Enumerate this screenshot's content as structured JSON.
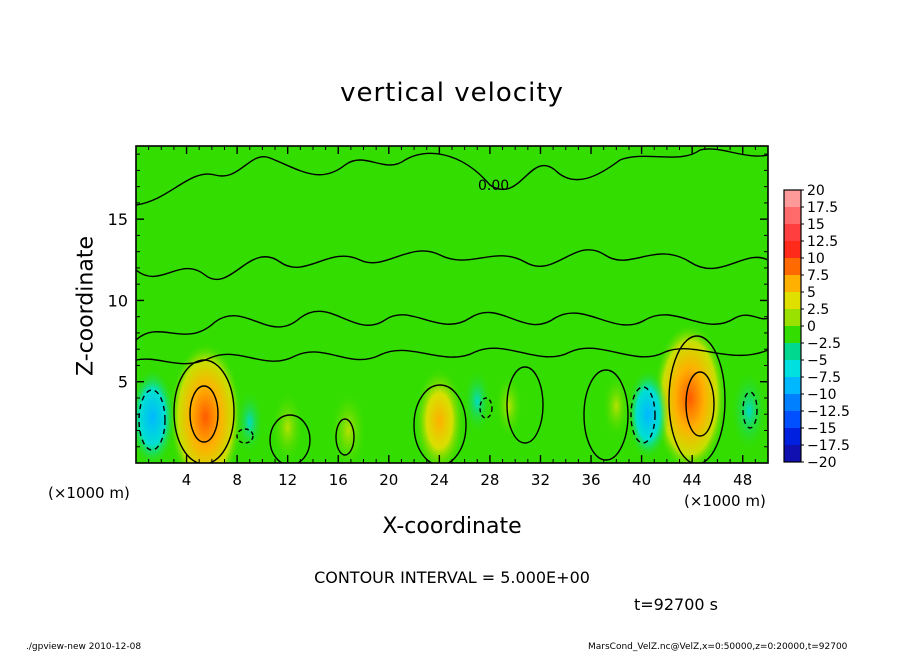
{
  "chart_data": {
    "type": "heatmap",
    "title": "vertical velocity",
    "xlabel": "X-coordinate",
    "ylabel": "Z-coordinate",
    "x_unit_label": "(×1000 m)",
    "xlim": [
      0,
      50
    ],
    "ylim": [
      0,
      19.5
    ],
    "x_ticks": [
      4,
      8,
      12,
      16,
      20,
      24,
      28,
      32,
      36,
      40,
      44,
      48
    ],
    "y_ticks": [
      5,
      10,
      15
    ],
    "contour_label": "0.00",
    "colorbar": {
      "levels": [
        20,
        17.5,
        15,
        12.5,
        10,
        7.5,
        5,
        2.5,
        0,
        -2.5,
        -5,
        -7.5,
        -10,
        -12.5,
        -15,
        -17.5,
        -20
      ],
      "colors": [
        "#ff9a9a",
        "#ff6a6a",
        "#ff3f3f",
        "#ff2a1a",
        "#ff6a00",
        "#ffb000",
        "#e0e000",
        "#9ae000",
        "#33dd00",
        "#00d890",
        "#00e0e0",
        "#00b8ff",
        "#0080ff",
        "#0050ff",
        "#0020e0",
        "#1010b0",
        "#7020b0"
      ]
    },
    "features": [
      {
        "x": 5.5,
        "z": 2.8,
        "w": 12
      },
      {
        "x": 43.8,
        "z": 4.0,
        "w": 12
      },
      {
        "x": 24,
        "z": 2.6,
        "w": 7
      },
      {
        "x": 16.8,
        "z": 2.0,
        "w": 4
      },
      {
        "x": 12,
        "z": 2.2,
        "w": 3
      },
      {
        "x": 38,
        "z": 3.5,
        "w": 2
      },
      {
        "x": 29.5,
        "z": 3.5,
        "w": 2
      },
      {
        "x": 1.3,
        "z": 2.8,
        "w": -6
      },
      {
        "x": 40.5,
        "z": 3.0,
        "w": -5
      },
      {
        "x": 48.5,
        "z": 3.2,
        "w": -4
      },
      {
        "x": 9,
        "z": 2.5,
        "w": -2
      },
      {
        "x": 27,
        "z": 3.8,
        "w": -2
      }
    ]
  },
  "contour_interval": "CONTOUR INTERVAL = 5.000E+00",
  "time_label": "t=92700 s",
  "footer": {
    "left": "./gpview-new   2010-12-08",
    "right": "MarsCond_VelZ.nc@VelZ,x=0:50000,z=0:20000,t=92700"
  }
}
